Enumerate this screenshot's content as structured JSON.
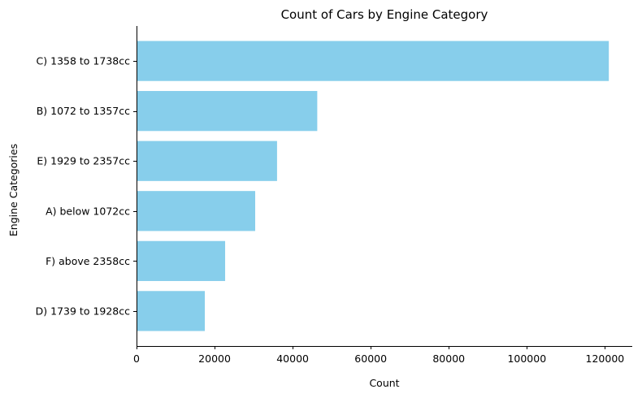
{
  "chart_data": {
    "type": "bar",
    "orientation": "horizontal",
    "title": "Count of Cars by Engine Category",
    "xlabel": "Count",
    "ylabel": "Engine Categories",
    "categories": [
      "C) 1358 to 1738cc",
      "B) 1072 to 1357cc",
      "E) 1929 to 2357cc",
      "A) below 1072cc",
      "F) above 2358cc",
      "D) 1739 to 1928cc"
    ],
    "values": [
      121000,
      46300,
      36000,
      30400,
      22700,
      17500
    ],
    "xlim": [
      0,
      127000
    ],
    "xticks": [
      0,
      20000,
      40000,
      60000,
      80000,
      100000,
      120000
    ],
    "xtick_labels": [
      "0",
      "20000",
      "40000",
      "60000",
      "80000",
      "100000",
      "120000"
    ],
    "bar_color": "#87ceeb",
    "grid": false,
    "legend": "none"
  }
}
